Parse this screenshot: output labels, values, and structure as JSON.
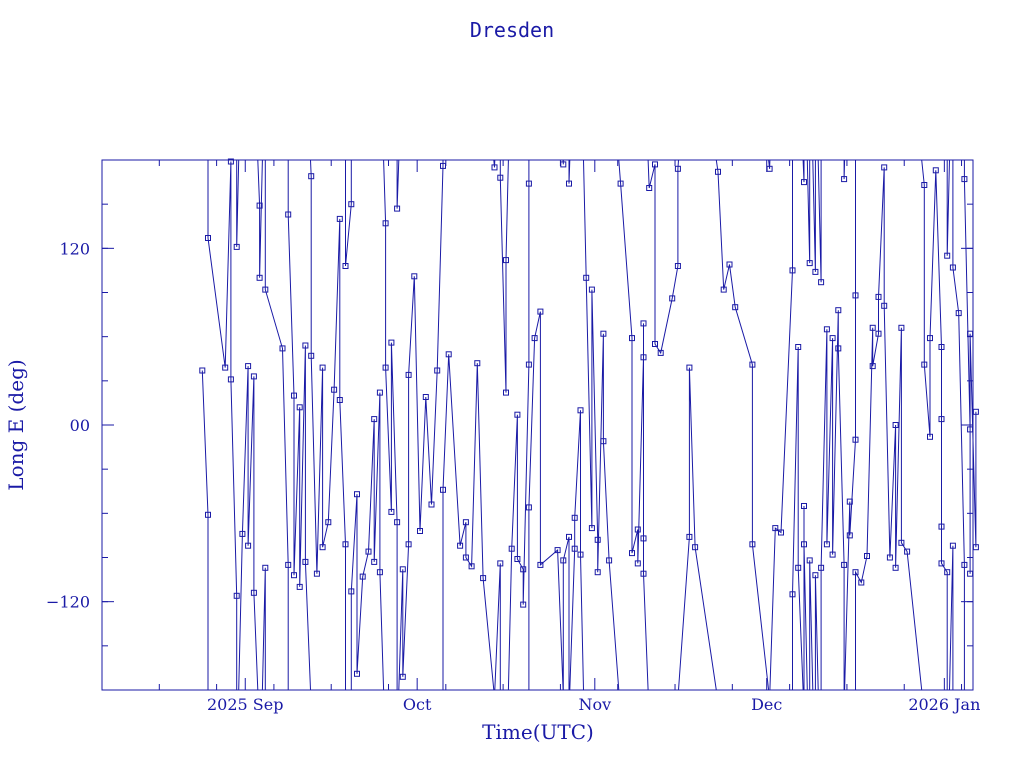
{
  "chart_data": {
    "type": "scatter",
    "title": "Dresden",
    "xlabel": "Time(UTC)",
    "ylabel": "Long E (deg)",
    "x_unit": "date",
    "xlim": [
      "2025-08-07",
      "2026-01-06"
    ],
    "ylim": [
      -180,
      180
    ],
    "grid": false,
    "legend": "none",
    "x_tick_labels": [
      {
        "date": "2025-09-01",
        "label": "2025 Sep"
      },
      {
        "date": "2025-10-01",
        "label": "Oct"
      },
      {
        "date": "2025-11-01",
        "label": "Nov"
      },
      {
        "date": "2025-12-01",
        "label": "Dec"
      },
      {
        "date": "2026-01-01",
        "label": "2026 Jan"
      }
    ],
    "y_tick_labels": [
      {
        "value": 120,
        "label": "120"
      },
      {
        "value": 0,
        "label": "00"
      },
      {
        "value": -120,
        "label": "−120"
      }
    ],
    "colors": {
      "series": "#1a1aa6",
      "frame": "#1a1aa6",
      "text": "#1a1aa6"
    },
    "series": [
      {
        "points": [
          {
            "x": "2025-08-24",
            "y": 37
          },
          {
            "x": "2025-08-25",
            "y": -61
          },
          {
            "x": "2025-08-25",
            "y": 127
          },
          {
            "x": "2025-08-28",
            "y": 39
          },
          {
            "x": "2025-08-29",
            "y": 179
          },
          {
            "x": "2025-08-29",
            "y": 31
          },
          {
            "x": "2025-08-30",
            "y": -116
          },
          {
            "x": "2025-08-30",
            "y": 121
          },
          {
            "x": "2025-08-31",
            "y": -74
          },
          {
            "x": "2025-09-01",
            "y": 40
          },
          {
            "x": "2025-09-01",
            "y": -82
          },
          {
            "x": "2025-09-02",
            "y": 33
          },
          {
            "x": "2025-09-02",
            "y": -114
          },
          {
            "x": "2025-09-03",
            "y": 149
          },
          {
            "x": "2025-09-03",
            "y": 100
          },
          {
            "x": "2025-09-04",
            "y": -97
          },
          {
            "x": "2025-09-04",
            "y": 92
          },
          {
            "x": "2025-09-07",
            "y": 52
          },
          {
            "x": "2025-09-08",
            "y": -95
          },
          {
            "x": "2025-09-08",
            "y": 143
          },
          {
            "x": "2025-09-09",
            "y": 20
          },
          {
            "x": "2025-09-09",
            "y": -102
          },
          {
            "x": "2025-09-10",
            "y": 12
          },
          {
            "x": "2025-09-10",
            "y": -110
          },
          {
            "x": "2025-09-11",
            "y": 54
          },
          {
            "x": "2025-09-11",
            "y": -93
          },
          {
            "x": "2025-09-12",
            "y": 169
          },
          {
            "x": "2025-09-12",
            "y": 47
          },
          {
            "x": "2025-09-13",
            "y": -101
          },
          {
            "x": "2025-09-14",
            "y": 39
          },
          {
            "x": "2025-09-14",
            "y": -83
          },
          {
            "x": "2025-09-15",
            "y": -66
          },
          {
            "x": "2025-09-16",
            "y": 24
          },
          {
            "x": "2025-09-17",
            "y": 140
          },
          {
            "x": "2025-09-17",
            "y": 17
          },
          {
            "x": "2025-09-18",
            "y": -81
          },
          {
            "x": "2025-09-18",
            "y": 108
          },
          {
            "x": "2025-09-19",
            "y": 150
          },
          {
            "x": "2025-09-19",
            "y": -113
          },
          {
            "x": "2025-09-20",
            "y": -47
          },
          {
            "x": "2025-09-20",
            "y": -169
          },
          {
            "x": "2025-09-21",
            "y": -103
          },
          {
            "x": "2025-09-22",
            "y": -86
          },
          {
            "x": "2025-09-23",
            "y": 4
          },
          {
            "x": "2025-09-23",
            "y": -93
          },
          {
            "x": "2025-09-24",
            "y": 22
          },
          {
            "x": "2025-09-24",
            "y": -100
          },
          {
            "x": "2025-09-25",
            "y": 137
          },
          {
            "x": "2025-09-25",
            "y": 39
          },
          {
            "x": "2025-09-26",
            "y": -59
          },
          {
            "x": "2025-09-26",
            "y": 56
          },
          {
            "x": "2025-09-27",
            "y": -66
          },
          {
            "x": "2025-09-27",
            "y": 147
          },
          {
            "x": "2025-09-28",
            "y": -98
          },
          {
            "x": "2025-09-28",
            "y": -171
          },
          {
            "x": "2025-09-29",
            "y": -81
          },
          {
            "x": "2025-09-29",
            "y": 34
          },
          {
            "x": "2025-09-30",
            "y": 101
          },
          {
            "x": "2025-10-01",
            "y": -72
          },
          {
            "x": "2025-10-02",
            "y": 19
          },
          {
            "x": "2025-10-03",
            "y": -54
          },
          {
            "x": "2025-10-04",
            "y": 37
          },
          {
            "x": "2025-10-05",
            "y": 176
          },
          {
            "x": "2025-10-05",
            "y": -44
          },
          {
            "x": "2025-10-06",
            "y": 48
          },
          {
            "x": "2025-10-08",
            "y": -82
          },
          {
            "x": "2025-10-09",
            "y": -66
          },
          {
            "x": "2025-10-09",
            "y": -90
          },
          {
            "x": "2025-10-10",
            "y": -96
          },
          {
            "x": "2025-10-11",
            "y": 42
          },
          {
            "x": "2025-10-12",
            "y": -104
          },
          {
            "x": "2025-10-14",
            "y": 175
          },
          {
            "x": "2025-10-15",
            "y": -94
          },
          {
            "x": "2025-10-15",
            "y": 168
          },
          {
            "x": "2025-10-16",
            "y": 22
          },
          {
            "x": "2025-10-16",
            "y": 112
          },
          {
            "x": "2025-10-17",
            "y": -84
          },
          {
            "x": "2025-10-18",
            "y": 7
          },
          {
            "x": "2025-10-18",
            "y": -91
          },
          {
            "x": "2025-10-19",
            "y": -98
          },
          {
            "x": "2025-10-19",
            "y": -122
          },
          {
            "x": "2025-10-20",
            "y": 41
          },
          {
            "x": "2025-10-20",
            "y": 164
          },
          {
            "x": "2025-10-20",
            "y": -56
          },
          {
            "x": "2025-10-21",
            "y": 59
          },
          {
            "x": "2025-10-22",
            "y": 77
          },
          {
            "x": "2025-10-22",
            "y": -95
          },
          {
            "x": "2025-10-25",
            "y": -85
          },
          {
            "x": "2025-10-26",
            "y": 177
          },
          {
            "x": "2025-10-26",
            "y": -92
          },
          {
            "x": "2025-10-27",
            "y": -76
          },
          {
            "x": "2025-10-27",
            "y": 164
          },
          {
            "x": "2025-10-28",
            "y": -84
          },
          {
            "x": "2025-10-28",
            "y": -63
          },
          {
            "x": "2025-10-29",
            "y": 10
          },
          {
            "x": "2025-10-29",
            "y": -88
          },
          {
            "x": "2025-10-30",
            "y": 100
          },
          {
            "x": "2025-10-31",
            "y": -70
          },
          {
            "x": "2025-10-31",
            "y": 92
          },
          {
            "x": "2025-11-01",
            "y": -78
          },
          {
            "x": "2025-11-01",
            "y": -100
          },
          {
            "x": "2025-11-02",
            "y": 62
          },
          {
            "x": "2025-11-02",
            "y": -11
          },
          {
            "x": "2025-11-03",
            "y": -92
          },
          {
            "x": "2025-11-05",
            "y": 164
          },
          {
            "x": "2025-11-07",
            "y": 59
          },
          {
            "x": "2025-11-07",
            "y": -87
          },
          {
            "x": "2025-11-08",
            "y": -71
          },
          {
            "x": "2025-11-08",
            "y": -94
          },
          {
            "x": "2025-11-09",
            "y": 46
          },
          {
            "x": "2025-11-09",
            "y": 69
          },
          {
            "x": "2025-11-09",
            "y": -77
          },
          {
            "x": "2025-11-09",
            "y": -101
          },
          {
            "x": "2025-11-10",
            "y": 161
          },
          {
            "x": "2025-11-11",
            "y": 177
          },
          {
            "x": "2025-11-11",
            "y": 55
          },
          {
            "x": "2025-11-12",
            "y": 49
          },
          {
            "x": "2025-11-14",
            "y": 86
          },
          {
            "x": "2025-11-15",
            "y": 108
          },
          {
            "x": "2025-11-15",
            "y": 174
          },
          {
            "x": "2025-11-17",
            "y": -76
          },
          {
            "x": "2025-11-17",
            "y": 39
          },
          {
            "x": "2025-11-18",
            "y": -83
          },
          {
            "x": "2025-11-22",
            "y": 172
          },
          {
            "x": "2025-11-23",
            "y": 92
          },
          {
            "x": "2025-11-24",
            "y": 109
          },
          {
            "x": "2025-11-25",
            "y": 80
          },
          {
            "x": "2025-11-28",
            "y": 41
          },
          {
            "x": "2025-11-28",
            "y": -81
          },
          {
            "x": "2025-12-01",
            "y": 174
          },
          {
            "x": "2025-12-02",
            "y": -70
          },
          {
            "x": "2025-12-03",
            "y": -73
          },
          {
            "x": "2025-12-05",
            "y": 105
          },
          {
            "x": "2025-12-05",
            "y": -115
          },
          {
            "x": "2025-12-06",
            "y": 53
          },
          {
            "x": "2025-12-06",
            "y": -97
          },
          {
            "x": "2025-12-07",
            "y": 165
          },
          {
            "x": "2025-12-07",
            "y": -55
          },
          {
            "x": "2025-12-07",
            "y": -81
          },
          {
            "x": "2025-12-08",
            "y": 110
          },
          {
            "x": "2025-12-08",
            "y": -92
          },
          {
            "x": "2025-12-09",
            "y": 104
          },
          {
            "x": "2025-12-09",
            "y": -102
          },
          {
            "x": "2025-12-10",
            "y": 97
          },
          {
            "x": "2025-12-10",
            "y": -97
          },
          {
            "x": "2025-12-11",
            "y": 65
          },
          {
            "x": "2025-12-11",
            "y": -81
          },
          {
            "x": "2025-12-12",
            "y": 59
          },
          {
            "x": "2025-12-12",
            "y": -88
          },
          {
            "x": "2025-12-13",
            "y": 78
          },
          {
            "x": "2025-12-13",
            "y": 52
          },
          {
            "x": "2025-12-14",
            "y": -95
          },
          {
            "x": "2025-12-14",
            "y": 167
          },
          {
            "x": "2025-12-15",
            "y": -52
          },
          {
            "x": "2025-12-15",
            "y": -75
          },
          {
            "x": "2025-12-16",
            "y": -10
          },
          {
            "x": "2025-12-16",
            "y": 88
          },
          {
            "x": "2025-12-16",
            "y": -100
          },
          {
            "x": "2025-12-17",
            "y": -107
          },
          {
            "x": "2025-12-18",
            "y": -89
          },
          {
            "x": "2025-12-19",
            "y": 66
          },
          {
            "x": "2025-12-19",
            "y": 40
          },
          {
            "x": "2025-12-20",
            "y": 62
          },
          {
            "x": "2025-12-20",
            "y": 87
          },
          {
            "x": "2025-12-21",
            "y": 175
          },
          {
            "x": "2025-12-21",
            "y": 81
          },
          {
            "x": "2025-12-22",
            "y": -90
          },
          {
            "x": "2025-12-23",
            "y": 0
          },
          {
            "x": "2025-12-23",
            "y": -97
          },
          {
            "x": "2025-12-24",
            "y": 66
          },
          {
            "x": "2025-12-24",
            "y": -80
          },
          {
            "x": "2025-12-25",
            "y": -86
          },
          {
            "x": "2025-12-28",
            "y": 163
          },
          {
            "x": "2025-12-28",
            "y": 41
          },
          {
            "x": "2025-12-29",
            "y": -8
          },
          {
            "x": "2025-12-29",
            "y": 59
          },
          {
            "x": "2025-12-30",
            "y": 173
          },
          {
            "x": "2025-12-31",
            "y": 53
          },
          {
            "x": "2025-12-31",
            "y": 4
          },
          {
            "x": "2025-12-31",
            "y": -69
          },
          {
            "x": "2025-12-31",
            "y": -94
          },
          {
            "x": "2026-01-01",
            "y": -100
          },
          {
            "x": "2026-01-01",
            "y": 115
          },
          {
            "x": "2026-01-02",
            "y": -82
          },
          {
            "x": "2026-01-02",
            "y": 107
          },
          {
            "x": "2026-01-03",
            "y": 76
          },
          {
            "x": "2026-01-04",
            "y": -95
          },
          {
            "x": "2026-01-04",
            "y": 167
          },
          {
            "x": "2026-01-05",
            "y": -3
          },
          {
            "x": "2026-01-05",
            "y": -101
          },
          {
            "x": "2026-01-05",
            "y": 62
          },
          {
            "x": "2026-01-06",
            "y": -83
          },
          {
            "x": "2026-01-06",
            "y": 9
          }
        ]
      }
    ]
  }
}
